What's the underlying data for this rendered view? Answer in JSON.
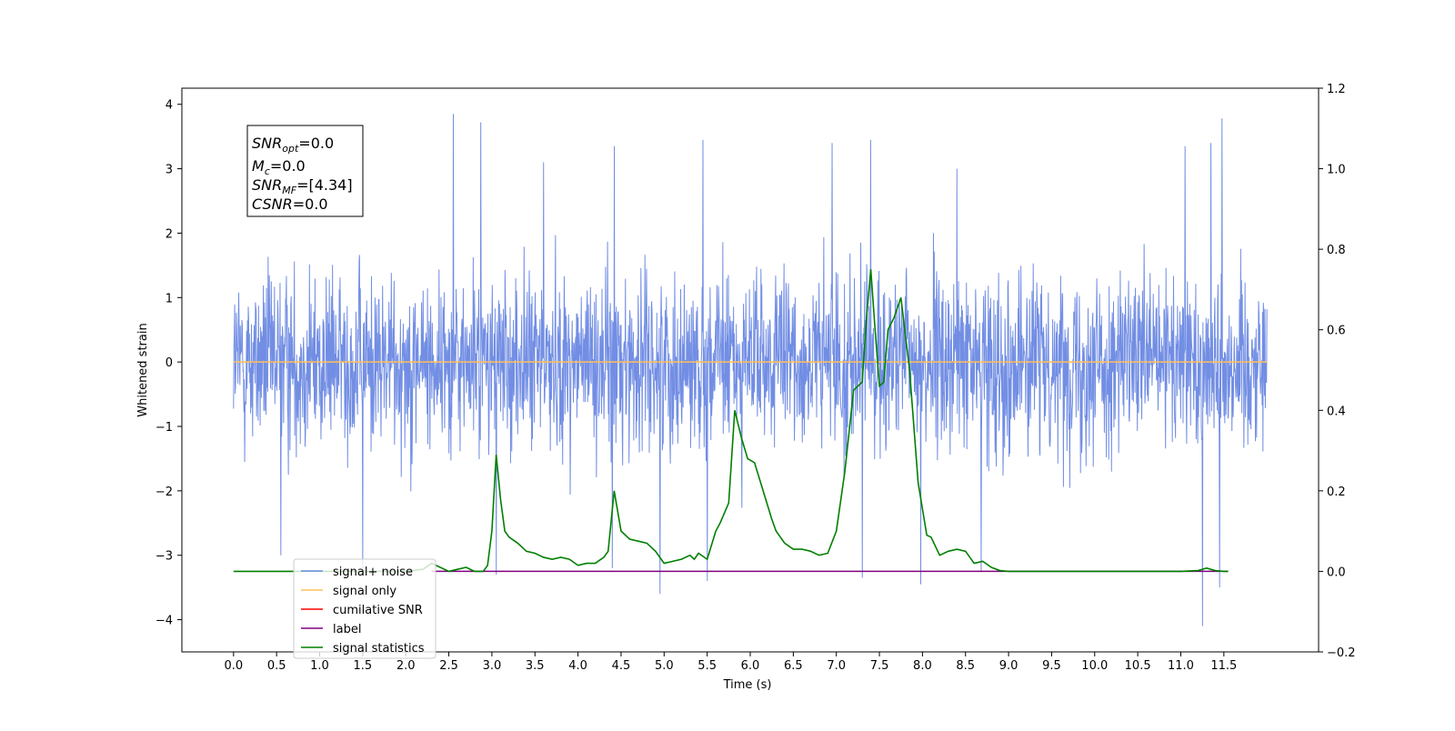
{
  "chart_data": {
    "type": "line",
    "xlabel": "Time (s)",
    "ylabel": "Whitened strain",
    "xlim": [
      -0.6,
      12.6
    ],
    "ylim": [
      -4.5,
      4.25
    ],
    "y2lim": [
      -0.2,
      1.2
    ],
    "x_ticks": [
      "0.0",
      "0.5",
      "1.0",
      "1.5",
      "2.0",
      "2.5",
      "3.0",
      "3.5",
      "4.0",
      "4.5",
      "5.0",
      "5.5",
      "6.0",
      "6.5",
      "7.0",
      "7.5",
      "8.0",
      "8.5",
      "9.0",
      "9.5",
      "10.0",
      "10.5",
      "11.0",
      "11.5"
    ],
    "y_ticks": [
      "4",
      "3",
      "2",
      "1",
      "0",
      "−1",
      "−2",
      "−3",
      "−4"
    ],
    "y2_ticks": [
      "1.2",
      "1.0",
      "0.8",
      "0.6",
      "0.4",
      "0.2",
      "0.0",
      "−0.2"
    ],
    "info_box": [
      {
        "main": "SNR",
        "sub": "opt",
        "rest": "=0.0"
      },
      {
        "main": "M",
        "sub": "c",
        "rest": "=0.0"
      },
      {
        "main": "SNR",
        "sub": "MF",
        "rest": "=[4.34]"
      },
      {
        "main": "CSNR",
        "sub": "",
        "rest": "=0.0"
      }
    ],
    "legend": {
      "placement": "lower-left",
      "entries": [
        {
          "label": "signal+ noise",
          "color": "#6a88e3"
        },
        {
          "label": "signal only",
          "color": "#ffbf5a"
        },
        {
          "label": "cumilative SNR",
          "color": "#ff0000"
        },
        {
          "label": "label",
          "color": "#800080"
        },
        {
          "label": "signal statistics",
          "color": "#008000"
        }
      ]
    },
    "series": [
      {
        "name": "signal+ noise",
        "color": "#6a88e3",
        "x_range": [
          0,
          12
        ],
        "typical_envelope": [
          -2.2,
          2.3
        ],
        "peaks": [
          {
            "x": 2.55,
            "y": 3.85
          },
          {
            "x": 2.87,
            "y": 3.72
          },
          {
            "x": 5.45,
            "y": 3.45
          },
          {
            "x": 7.4,
            "y": 3.45
          },
          {
            "x": 11.48,
            "y": 3.78
          },
          {
            "x": 4.42,
            "y": 3.35
          },
          {
            "x": 6.95,
            "y": 3.4
          },
          {
            "x": 11.05,
            "y": 3.35
          },
          {
            "x": 11.35,
            "y": 3.4
          },
          {
            "x": 3.6,
            "y": 3.1
          },
          {
            "x": 8.4,
            "y": 3.0
          }
        ],
        "troughs": [
          {
            "x": 11.25,
            "y": -4.1
          },
          {
            "x": 4.95,
            "y": -3.6
          },
          {
            "x": 7.98,
            "y": -3.45
          },
          {
            "x": 11.45,
            "y": -3.5
          },
          {
            "x": 5.5,
            "y": -3.4
          },
          {
            "x": 3.05,
            "y": -3.3
          },
          {
            "x": 8.68,
            "y": -3.25
          },
          {
            "x": 7.3,
            "y": -3.35
          },
          {
            "x": 4.4,
            "y": -3.2
          },
          {
            "x": 1.5,
            "y": -3.2
          },
          {
            "x": 0.55,
            "y": -3.0
          }
        ]
      },
      {
        "name": "signal only",
        "color": "#ffbf5a",
        "x": [
          0,
          12
        ],
        "y": [
          0,
          0
        ]
      },
      {
        "name": "label",
        "color": "#800080",
        "axis": "right",
        "x": [
          2.3,
          11.55
        ],
        "y": [
          0,
          0
        ]
      },
      {
        "name": "signal statistics",
        "color": "#008000",
        "axis": "right",
        "x": [
          0.0,
          2.0,
          2.2,
          2.3,
          2.4,
          2.5,
          2.6,
          2.7,
          2.8,
          2.9,
          2.95,
          3.0,
          3.05,
          3.1,
          3.15,
          3.2,
          3.3,
          3.4,
          3.5,
          3.6,
          3.7,
          3.8,
          3.9,
          4.0,
          4.1,
          4.2,
          4.3,
          4.35,
          4.42,
          4.5,
          4.6,
          4.7,
          4.8,
          4.9,
          5.0,
          5.1,
          5.2,
          5.3,
          5.35,
          5.4,
          5.5,
          5.6,
          5.65,
          5.75,
          5.82,
          5.9,
          5.97,
          6.05,
          6.15,
          6.25,
          6.3,
          6.4,
          6.5,
          6.6,
          6.7,
          6.8,
          6.9,
          7.0,
          7.1,
          7.2,
          7.3,
          7.35,
          7.4,
          7.45,
          7.5,
          7.55,
          7.6,
          7.67,
          7.75,
          7.85,
          7.95,
          8.05,
          8.1,
          8.2,
          8.3,
          8.4,
          8.5,
          8.6,
          8.7,
          8.8,
          8.9,
          9.0,
          9.5,
          10.0,
          10.5,
          11.0,
          11.2,
          11.3,
          11.4,
          11.5,
          11.55
        ],
        "y": [
          0.0,
          0.0,
          0.005,
          0.02,
          0.01,
          0.0,
          0.005,
          0.01,
          0.0,
          0.0,
          0.015,
          0.1,
          0.29,
          0.18,
          0.1,
          0.085,
          0.07,
          0.05,
          0.045,
          0.035,
          0.03,
          0.035,
          0.03,
          0.015,
          0.02,
          0.02,
          0.035,
          0.05,
          0.2,
          0.1,
          0.08,
          0.075,
          0.07,
          0.05,
          0.02,
          0.025,
          0.03,
          0.04,
          0.03,
          0.045,
          0.03,
          0.1,
          0.12,
          0.17,
          0.4,
          0.33,
          0.28,
          0.27,
          0.2,
          0.13,
          0.1,
          0.07,
          0.055,
          0.055,
          0.05,
          0.04,
          0.045,
          0.1,
          0.25,
          0.45,
          0.47,
          0.63,
          0.75,
          0.6,
          0.46,
          0.47,
          0.6,
          0.63,
          0.68,
          0.5,
          0.22,
          0.09,
          0.085,
          0.04,
          0.05,
          0.055,
          0.05,
          0.02,
          0.025,
          0.01,
          0.002,
          0.0,
          0.0,
          0.0,
          0.0,
          0.0,
          0.002,
          0.008,
          0.002,
          0.0,
          0.0
        ]
      }
    ]
  }
}
